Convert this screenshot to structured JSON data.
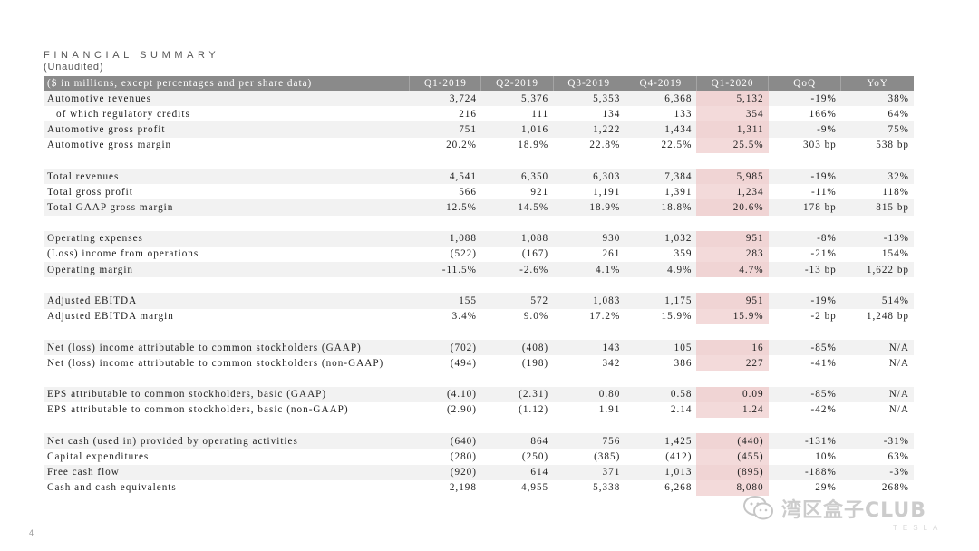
{
  "header": {
    "title": "FINANCIAL SUMMARY",
    "subtitle": "(Unaudited)"
  },
  "table": {
    "columns": [
      "($ in millions, except percentages and per share data)",
      "Q1-2019",
      "Q2-2019",
      "Q3-2019",
      "Q4-2019",
      "Q1-2020",
      "QoQ",
      "YoY"
    ],
    "groups": [
      [
        {
          "label": "Automotive revenues",
          "values": [
            "3,724",
            "5,376",
            "5,353",
            "6,368",
            "5,132",
            "-19%",
            "38%"
          ]
        },
        {
          "label": "of which regulatory credits",
          "values": [
            "216",
            "111",
            "134",
            "133",
            "354",
            "166%",
            "64%"
          ],
          "indent": true
        },
        {
          "label": "Automotive gross profit",
          "values": [
            "751",
            "1,016",
            "1,222",
            "1,434",
            "1,311",
            "-9%",
            "75%"
          ]
        },
        {
          "label": "Automotive gross margin",
          "values": [
            "20.2%",
            "18.9%",
            "22.8%",
            "22.5%",
            "25.5%",
            "303 bp",
            "538 bp"
          ]
        }
      ],
      [
        {
          "label": "Total revenues",
          "values": [
            "4,541",
            "6,350",
            "6,303",
            "7,384",
            "5,985",
            "-19%",
            "32%"
          ]
        },
        {
          "label": "Total gross profit",
          "values": [
            "566",
            "921",
            "1,191",
            "1,391",
            "1,234",
            "-11%",
            "118%"
          ]
        },
        {
          "label": "Total GAAP gross margin",
          "values": [
            "12.5%",
            "14.5%",
            "18.9%",
            "18.8%",
            "20.6%",
            "178 bp",
            "815 bp"
          ]
        }
      ],
      [
        {
          "label": "Operating expenses",
          "values": [
            "1,088",
            "1,088",
            "930",
            "1,032",
            "951",
            "-8%",
            "-13%"
          ]
        },
        {
          "label": "(Loss) income from operations",
          "values": [
            "(522)",
            "(167)",
            "261",
            "359",
            "283",
            "-21%",
            "154%"
          ]
        },
        {
          "label": "Operating margin",
          "values": [
            "-11.5%",
            "-2.6%",
            "4.1%",
            "4.9%",
            "4.7%",
            "-13 bp",
            "1,622 bp"
          ]
        }
      ],
      [
        {
          "label": "Adjusted EBITDA",
          "values": [
            "155",
            "572",
            "1,083",
            "1,175",
            "951",
            "-19%",
            "514%"
          ]
        },
        {
          "label": "Adjusted EBITDA margin",
          "values": [
            "3.4%",
            "9.0%",
            "17.2%",
            "15.9%",
            "15.9%",
            "-2 bp",
            "1,248 bp"
          ]
        }
      ],
      [
        {
          "label": "Net (loss) income attributable to common stockholders (GAAP)",
          "values": [
            "(702)",
            "(408)",
            "143",
            "105",
            "16",
            "-85%",
            "N/A"
          ]
        },
        {
          "label": "Net (loss) income attributable to common stockholders (non-GAAP)",
          "values": [
            "(494)",
            "(198)",
            "342",
            "386",
            "227",
            "-41%",
            "N/A"
          ]
        }
      ],
      [
        {
          "label": "EPS attributable to common stockholders, basic (GAAP)",
          "values": [
            "(4.10)",
            "(2.31)",
            "0.80",
            "0.58",
            "0.09",
            "-85%",
            "N/A"
          ]
        },
        {
          "label": "EPS attributable to common stockholders, basic (non-GAAP)",
          "values": [
            "(2.90)",
            "(1.12)",
            "1.91",
            "2.14",
            "1.24",
            "-42%",
            "N/A"
          ]
        }
      ],
      [
        {
          "label": "Net cash (used in) provided by operating activities",
          "values": [
            "(640)",
            "864",
            "756",
            "1,425",
            "(440)",
            "-131%",
            "-31%"
          ]
        },
        {
          "label": "Capital expenditures",
          "values": [
            "(280)",
            "(250)",
            "(385)",
            "(412)",
            "(455)",
            "10%",
            "63%"
          ]
        },
        {
          "label": "Free cash flow",
          "values": [
            "(920)",
            "614",
            "371",
            "1,013",
            "(895)",
            "-188%",
            "-3%"
          ]
        },
        {
          "label": "Cash and cash equivalents",
          "values": [
            "2,198",
            "4,955",
            "5,338",
            "6,268",
            "8,080",
            "29%",
            "268%"
          ]
        }
      ]
    ]
  },
  "footer": {
    "page_number": "4",
    "watermark_text": "湾区盒子CLUB",
    "watermark_icon": "wechat-icon",
    "brand_faint": "TESLA"
  },
  "colors": {
    "header_bg": "#8a8a8a",
    "row_shade": "#f2f2f2",
    "highlight": "#f3dada"
  }
}
